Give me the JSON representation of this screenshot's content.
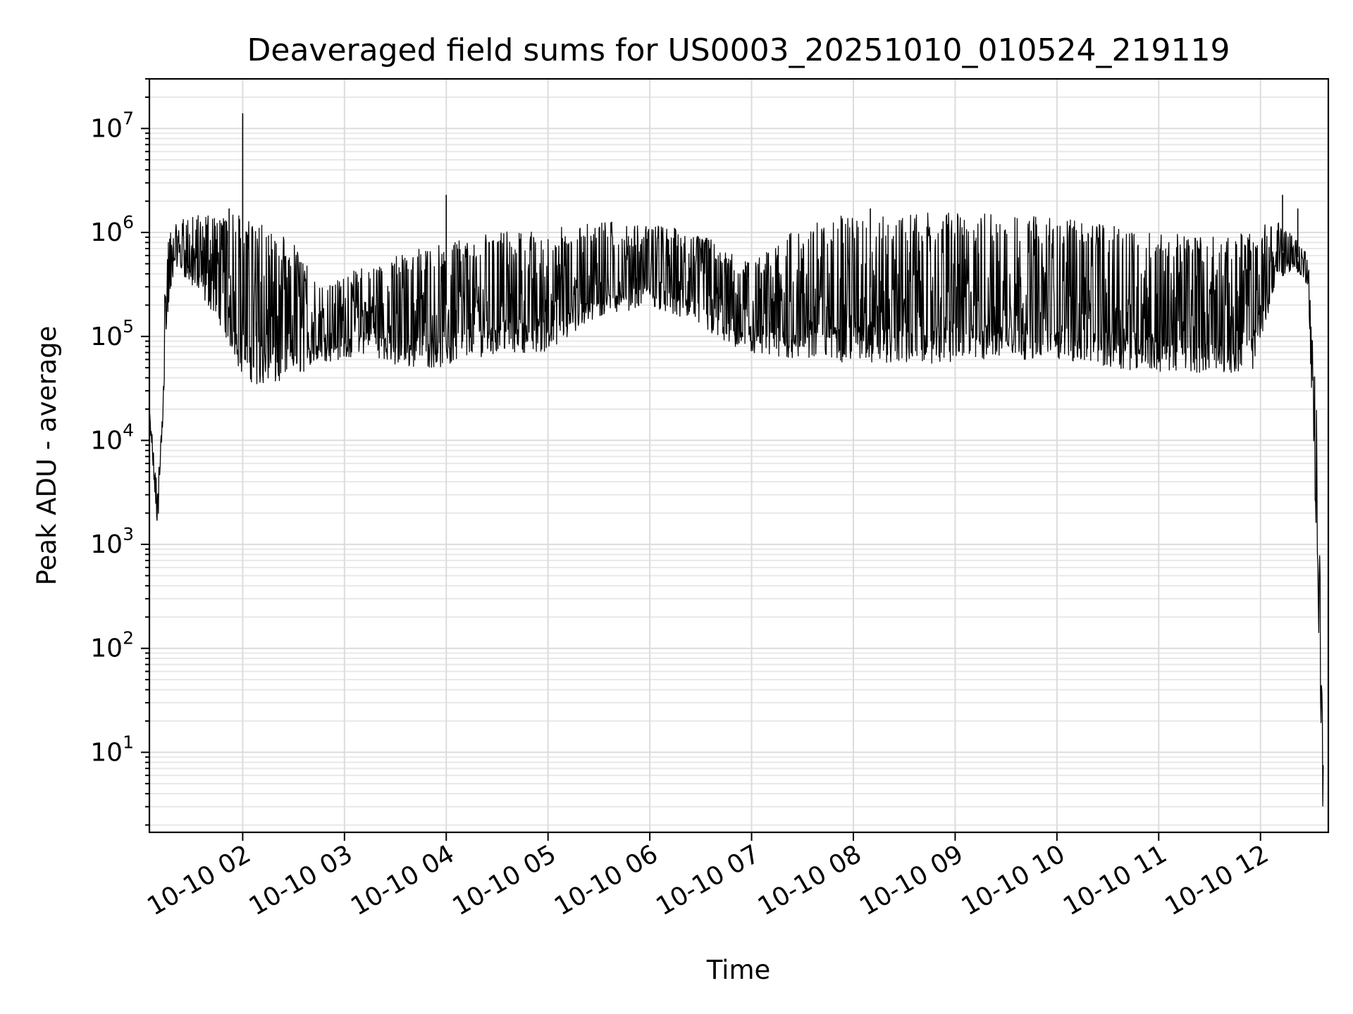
{
  "chart_data": {
    "type": "line",
    "title": "Deaveraged field sums for US0003_20251010_010524_219119",
    "xlabel": "Time",
    "ylabel": "Peak ADU - average",
    "yscale": "log",
    "ylim": [
      1.7,
      30000000
    ],
    "xlim": [
      "2025-10-10 01:05",
      "2025-10-10 12:40"
    ],
    "grid": true,
    "x_ticks": [
      {
        "t": "2025-10-10 02:00",
        "label": "10-10 02"
      },
      {
        "t": "2025-10-10 03:00",
        "label": "10-10 03"
      },
      {
        "t": "2025-10-10 04:00",
        "label": "10-10 04"
      },
      {
        "t": "2025-10-10 05:00",
        "label": "10-10 05"
      },
      {
        "t": "2025-10-10 06:00",
        "label": "10-10 06"
      },
      {
        "t": "2025-10-10 07:00",
        "label": "10-10 07"
      },
      {
        "t": "2025-10-10 08:00",
        "label": "10-10 08"
      },
      {
        "t": "2025-10-10 09:00",
        "label": "10-10 09"
      },
      {
        "t": "2025-10-10 10:00",
        "label": "10-10 10"
      },
      {
        "t": "2025-10-10 11:00",
        "label": "10-10 11"
      },
      {
        "t": "2025-10-10 12:00",
        "label": "10-10 12"
      }
    ],
    "y_ticks": [
      {
        "value": 10,
        "base": "10",
        "exp": "1"
      },
      {
        "value": 100,
        "base": "10",
        "exp": "2"
      },
      {
        "value": 1000,
        "base": "10",
        "exp": "3"
      },
      {
        "value": 10000,
        "base": "10",
        "exp": "4"
      },
      {
        "value": 100000,
        "base": "10",
        "exp": "5"
      },
      {
        "value": 1000000,
        "base": "10",
        "exp": "6"
      },
      {
        "value": 10000000,
        "base": "10",
        "exp": "7"
      }
    ],
    "series": [
      {
        "color": "#000000",
        "envelope": [
          {
            "t": "2025-10-10 01:05",
            "low": 15000,
            "high": 22000
          },
          {
            "t": "2025-10-10 01:10",
            "low": 1200,
            "high": 3000
          },
          {
            "t": "2025-10-10 01:15",
            "low": 100000,
            "high": 900000
          },
          {
            "t": "2025-10-10 01:20",
            "low": 500000,
            "high": 1500000
          },
          {
            "t": "2025-10-10 01:30",
            "low": 300000,
            "high": 1400000
          },
          {
            "t": "2025-10-10 01:45",
            "low": 150000,
            "high": 1700000
          },
          {
            "t": "2025-10-10 02:00",
            "low": 40000,
            "high": 1500000
          },
          {
            "t": "2025-10-10 02:15",
            "low": 30000,
            "high": 1100000
          },
          {
            "t": "2025-10-10 02:30",
            "low": 40000,
            "high": 800000
          },
          {
            "t": "2025-10-10 02:45",
            "low": 55000,
            "high": 300000
          },
          {
            "t": "2025-10-10 03:00",
            "low": 60000,
            "high": 400000
          },
          {
            "t": "2025-10-10 03:15",
            "low": 70000,
            "high": 500000
          },
          {
            "t": "2025-10-10 03:30",
            "low": 50000,
            "high": 600000
          },
          {
            "t": "2025-10-10 03:45",
            "low": 50000,
            "high": 700000
          },
          {
            "t": "2025-10-10 04:00",
            "low": 50000,
            "high": 800000
          },
          {
            "t": "2025-10-10 04:30",
            "low": 70000,
            "high": 1000000
          },
          {
            "t": "2025-10-10 05:00",
            "low": 70000,
            "high": 1100000
          },
          {
            "t": "2025-10-10 05:30",
            "low": 150000,
            "high": 1300000
          },
          {
            "t": "2025-10-10 06:00",
            "low": 200000,
            "high": 1200000
          },
          {
            "t": "2025-10-10 06:30",
            "low": 120000,
            "high": 1000000
          },
          {
            "t": "2025-10-10 07:00",
            "low": 60000,
            "high": 500000
          },
          {
            "t": "2025-10-10 07:30",
            "low": 60000,
            "high": 1200000
          },
          {
            "t": "2025-10-10 08:00",
            "low": 55000,
            "high": 1600000
          },
          {
            "t": "2025-10-10 08:30",
            "low": 55000,
            "high": 1600000
          },
          {
            "t": "2025-10-10 09:00",
            "low": 55000,
            "high": 1600000
          },
          {
            "t": "2025-10-10 09:30",
            "low": 60000,
            "high": 1500000
          },
          {
            "t": "2025-10-10 10:00",
            "low": 60000,
            "high": 1400000
          },
          {
            "t": "2025-10-10 10:30",
            "low": 50000,
            "high": 1200000
          },
          {
            "t": "2025-10-10 11:00",
            "low": 45000,
            "high": 1000000
          },
          {
            "t": "2025-10-10 11:30",
            "low": 45000,
            "high": 900000
          },
          {
            "t": "2025-10-10 11:55",
            "low": 45000,
            "high": 1100000
          },
          {
            "t": "2025-10-10 12:10",
            "low": 350000,
            "high": 1300000
          },
          {
            "t": "2025-10-10 12:20",
            "low": 450000,
            "high": 900000
          },
          {
            "t": "2025-10-10 12:28",
            "low": 300000,
            "high": 650000
          },
          {
            "t": "2025-10-10 12:33",
            "low": 1000,
            "high": 20000
          },
          {
            "t": "2025-10-10 12:37",
            "low": 1.7,
            "high": 20
          }
        ],
        "spikes": [
          {
            "t": "2025-10-10 02:00",
            "value": 14000000
          },
          {
            "t": "2025-10-10 04:00",
            "value": 2300000
          },
          {
            "t": "2025-10-10 12:13",
            "value": 2300000
          },
          {
            "t": "2025-10-10 12:22",
            "value": 1700000
          },
          {
            "t": "2025-10-10 01:52",
            "value": 1700000
          },
          {
            "t": "2025-10-10 08:10",
            "value": 1700000
          }
        ]
      }
    ]
  }
}
